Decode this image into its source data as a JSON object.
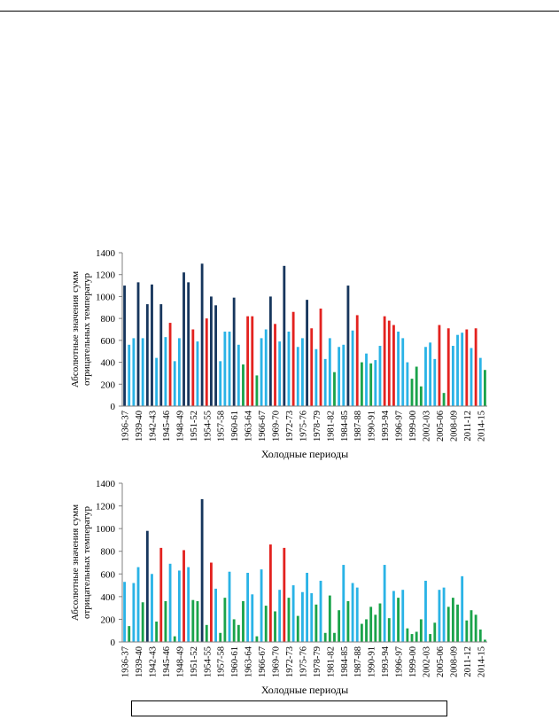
{
  "colors": {
    "dark_navy": "#17365d",
    "light_blue": "#2ab3e6",
    "red": "#e3221f",
    "green": "#1aa34a",
    "axis": "#808080"
  },
  "caption": "",
  "chart_data": [
    {
      "type": "bar",
      "ylabel": "Абсолютные значения сумм отрицательных температур",
      "xlabel": "Холодные периоды",
      "ylim": [
        0,
        1400
      ],
      "yticks": [
        0,
        200,
        400,
        600,
        800,
        1000,
        1200,
        1400
      ],
      "tick_labels": [
        "1936-37",
        "1939-40",
        "1942-43",
        "1945-46",
        "1948-49",
        "1951-52",
        "1954-55",
        "1957-58",
        "1960-61",
        "1963-64",
        "1966-67",
        "1969-70",
        "1972-73",
        "1975-76",
        "1978-79",
        "1981-82",
        "1984-85",
        "1987-88",
        "1990-91",
        "1993-94",
        "1996-97",
        "1999-00",
        "2002-03",
        "2005-06",
        "2008-09",
        "2011-12",
        "2014-15"
      ],
      "categories": [
        "1936-37",
        "1937-38",
        "1938-39",
        "1939-40",
        "1940-41",
        "1941-42",
        "1942-43",
        "1943-44",
        "1944-45",
        "1945-46",
        "1946-47",
        "1947-48",
        "1948-49",
        "1949-50",
        "1950-51",
        "1951-52",
        "1952-53",
        "1953-54",
        "1954-55",
        "1955-56",
        "1956-57",
        "1957-58",
        "1958-59",
        "1959-60",
        "1960-61",
        "1961-62",
        "1962-63",
        "1963-64",
        "1964-65",
        "1965-66",
        "1966-67",
        "1967-68",
        "1968-69",
        "1969-70",
        "1970-71",
        "1971-72",
        "1972-73",
        "1973-74",
        "1974-75",
        "1975-76",
        "1976-77",
        "1977-78",
        "1978-79",
        "1979-80",
        "1980-81",
        "1981-82",
        "1982-83",
        "1983-84",
        "1984-85",
        "1985-86",
        "1986-87",
        "1987-88",
        "1988-89",
        "1989-90",
        "1990-91",
        "1991-92",
        "1992-93",
        "1993-94",
        "1994-95",
        "1995-96",
        "1996-97",
        "1997-98",
        "1998-99",
        "1999-00",
        "2000-01",
        "2001-02",
        "2002-03",
        "2003-04",
        "2004-05",
        "2005-06",
        "2006-07",
        "2007-08",
        "2008-09",
        "2009-10",
        "2010-11",
        "2011-12",
        "2012-13",
        "2013-14",
        "2014-15",
        "2015-16"
      ],
      "values": [
        1100,
        560,
        620,
        1130,
        620,
        930,
        1110,
        440,
        930,
        630,
        760,
        410,
        620,
        1220,
        1130,
        700,
        590,
        1300,
        800,
        1000,
        920,
        410,
        680,
        680,
        990,
        560,
        380,
        820,
        820,
        280,
        620,
        700,
        1000,
        750,
        590,
        1280,
        680,
        860,
        540,
        620,
        970,
        710,
        520,
        890,
        430,
        620,
        310,
        540,
        560,
        1100,
        690,
        830,
        400,
        480,
        390,
        420,
        550,
        820,
        780,
        740,
        680,
        620,
        400,
        250,
        360,
        180,
        540,
        580,
        430,
        740,
        120,
        710,
        550,
        650,
        670,
        700,
        530,
        710,
        440,
        330
      ],
      "bar_colors": [
        "navy",
        "light",
        "light",
        "navy",
        "light",
        "navy",
        "navy",
        "light",
        "navy",
        "light",
        "red",
        "light",
        "light",
        "navy",
        "navy",
        "red",
        "light",
        "navy",
        "red",
        "navy",
        "navy",
        "light",
        "light",
        "light",
        "navy",
        "light",
        "green",
        "red",
        "red",
        "green",
        "light",
        "light",
        "navy",
        "red",
        "light",
        "navy",
        "light",
        "red",
        "light",
        "light",
        "navy",
        "red",
        "light",
        "red",
        "light",
        "light",
        "green",
        "light",
        "light",
        "navy",
        "light",
        "red",
        "green",
        "light",
        "green",
        "light",
        "light",
        "red",
        "red",
        "red",
        "light",
        "light",
        "light",
        "green",
        "green",
        "green",
        "light",
        "light",
        "light",
        "red",
        "green",
        "red",
        "light",
        "light",
        "light",
        "red",
        "light",
        "red",
        "light",
        "green"
      ]
    },
    {
      "type": "bar",
      "ylabel": "Абсолютные значения сумм отрицательных температур",
      "xlabel": "Холодные периоды",
      "ylim": [
        0,
        1400
      ],
      "yticks": [
        0,
        200,
        400,
        600,
        800,
        1000,
        1200,
        1400
      ],
      "tick_labels": [
        "1936-37",
        "1939-40",
        "1942-43",
        "1945-46",
        "1948-49",
        "1951-52",
        "1954-55",
        "1957-58",
        "1960-61",
        "1963-64",
        "1966-67",
        "1969-70",
        "1972-73",
        "1975-76",
        "1978-79",
        "1981-82",
        "1984-85",
        "1987-88",
        "1990-91",
        "1993-94",
        "1996-97",
        "1999-00",
        "2002-03",
        "2005-06",
        "2008-09",
        "2011-12",
        "2014-15"
      ],
      "categories": [
        "1936-37",
        "1937-38",
        "1938-39",
        "1939-40",
        "1940-41",
        "1941-42",
        "1942-43",
        "1943-44",
        "1944-45",
        "1945-46",
        "1946-47",
        "1947-48",
        "1948-49",
        "1949-50",
        "1950-51",
        "1951-52",
        "1952-53",
        "1953-54",
        "1954-55",
        "1955-56",
        "1956-57",
        "1957-58",
        "1958-59",
        "1959-60",
        "1960-61",
        "1961-62",
        "1962-63",
        "1963-64",
        "1964-65",
        "1965-66",
        "1966-67",
        "1967-68",
        "1968-69",
        "1969-70",
        "1970-71",
        "1971-72",
        "1972-73",
        "1973-74",
        "1974-75",
        "1975-76",
        "1976-77",
        "1977-78",
        "1978-79",
        "1979-80",
        "1980-81",
        "1981-82",
        "1982-83",
        "1983-84",
        "1984-85",
        "1985-86",
        "1986-87",
        "1987-88",
        "1988-89",
        "1989-90",
        "1990-91",
        "1991-92",
        "1992-93",
        "1993-94",
        "1994-95",
        "1995-96",
        "1996-97",
        "1997-98",
        "1998-99",
        "1999-00",
        "2000-01",
        "2001-02",
        "2002-03",
        "2003-04",
        "2004-05",
        "2005-06",
        "2006-07",
        "2007-08",
        "2008-09",
        "2009-10",
        "2010-11",
        "2011-12",
        "2012-13",
        "2013-14",
        "2014-15",
        "2015-16"
      ],
      "values": [
        530,
        140,
        520,
        660,
        350,
        980,
        600,
        180,
        830,
        360,
        690,
        50,
        630,
        810,
        660,
        370,
        360,
        1260,
        150,
        700,
        470,
        80,
        390,
        620,
        200,
        150,
        360,
        610,
        420,
        50,
        640,
        320,
        860,
        270,
        460,
        830,
        390,
        500,
        230,
        440,
        610,
        430,
        330,
        540,
        80,
        410,
        80,
        280,
        680,
        360,
        520,
        480,
        160,
        200,
        310,
        240,
        340,
        680,
        210,
        450,
        390,
        460,
        120,
        70,
        90,
        200,
        540,
        70,
        170,
        460,
        480,
        310,
        390,
        330,
        580,
        190,
        280,
        240,
        110,
        20
      ],
      "bar_colors": [
        "light",
        "green",
        "light",
        "light",
        "green",
        "navy",
        "light",
        "green",
        "red",
        "green",
        "light",
        "green",
        "light",
        "red",
        "light",
        "green",
        "green",
        "navy",
        "green",
        "red",
        "light",
        "green",
        "green",
        "light",
        "green",
        "green",
        "green",
        "light",
        "light",
        "green",
        "light",
        "green",
        "red",
        "green",
        "light",
        "red",
        "green",
        "light",
        "green",
        "light",
        "light",
        "light",
        "green",
        "light",
        "green",
        "green",
        "green",
        "green",
        "light",
        "green",
        "light",
        "light",
        "green",
        "green",
        "green",
        "green",
        "green",
        "light",
        "green",
        "light",
        "green",
        "light",
        "green",
        "green",
        "green",
        "green",
        "light",
        "green",
        "green",
        "light",
        "light",
        "green",
        "green",
        "green",
        "light",
        "green",
        "green",
        "green",
        "green",
        "green"
      ]
    }
  ]
}
